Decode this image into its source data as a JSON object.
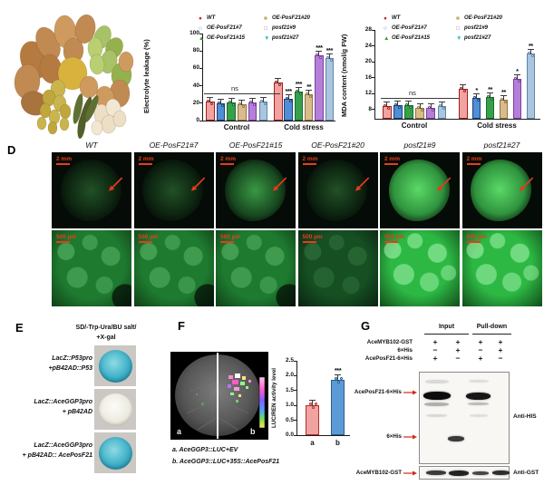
{
  "chart_data": [
    {
      "id": "electrolyte",
      "type": "bar",
      "title": "",
      "ylabel": "Electrolyte leakage (%)",
      "categories": [
        "Control",
        "Cold stress"
      ],
      "ylim": [
        0,
        100
      ],
      "yticks": [
        0,
        20,
        40,
        60,
        80,
        100
      ],
      "ns": {
        "label": "ns",
        "value": 31
      },
      "series": [
        {
          "name": "WT",
          "marker": "●",
          "color": "#c62828",
          "fill": "#f0a3a1",
          "border": "#a31d1d",
          "values": [
            22,
            44
          ],
          "sig": [
            "",
            ""
          ]
        },
        {
          "name": "OE-PosF21#7",
          "marker": "○",
          "color": "#2e5fa3",
          "fill": "#4e8fd6",
          "border": "#1c3f76",
          "values": [
            20,
            25
          ],
          "sig": [
            "",
            "***"
          ]
        },
        {
          "name": "OE-PosF21#15",
          "marker": "▲",
          "color": "#2f9e41",
          "fill": "#35a14b",
          "border": "#1c6b2c",
          "values": [
            21,
            33
          ],
          "sig": [
            "",
            "***"
          ]
        },
        {
          "name": "OE-PosF21#20",
          "marker": "■",
          "color": "#c8a96b",
          "fill": "#d9bc8d",
          "border": "#94743d",
          "values": [
            19,
            30
          ],
          "sig": [
            "",
            "**"
          ]
        },
        {
          "name": "posf21#9",
          "marker": "□",
          "color": "#b06fd4",
          "fill": "#b57fd9",
          "border": "#7d3f9e",
          "values": [
            21,
            75
          ],
          "sig": [
            "",
            "***"
          ]
        },
        {
          "name": "posf21#27",
          "marker": "▼",
          "color": "#45b8cc",
          "fill": "#a9c6de",
          "border": "#5f86a8",
          "values": [
            22,
            72
          ],
          "sig": [
            "",
            "***"
          ]
        }
      ]
    },
    {
      "id": "mda",
      "type": "bar",
      "title": "",
      "ylabel": "MDA content (nmol/g FW)",
      "categories": [
        "Control",
        "Cold stress"
      ],
      "ylim": [
        5.7,
        28
      ],
      "yticks": [
        8,
        12,
        16,
        20,
        24,
        28
      ],
      "ns": {
        "label": "ns",
        "value": 11
      },
      "series": [
        {
          "name": "WT",
          "marker": "●",
          "color": "#c62828",
          "fill": "#f0a3a1",
          "border": "#a31d1d",
          "values": [
            8.8,
            13.2
          ],
          "sig": [
            "",
            ""
          ]
        },
        {
          "name": "OE-PosF21#7",
          "marker": "○",
          "color": "#2e5fa3",
          "fill": "#4e8fd6",
          "border": "#1c3f76",
          "values": [
            9.2,
            11.0
          ],
          "sig": [
            "",
            "*"
          ]
        },
        {
          "name": "OE-PosF21#15",
          "marker": "▲",
          "color": "#2f9e41",
          "fill": "#35a14b",
          "border": "#1c6b2c",
          "values": [
            9.0,
            11.2
          ],
          "sig": [
            "",
            "**"
          ]
        },
        {
          "name": "OE-PosF21#20",
          "marker": "■",
          "color": "#c8a96b",
          "fill": "#d9bc8d",
          "border": "#94743d",
          "values": [
            8.5,
            10.4
          ],
          "sig": [
            "",
            "**"
          ]
        },
        {
          "name": "posf21#9",
          "marker": "□",
          "color": "#b06fd4",
          "fill": "#b57fd9",
          "border": "#7d3f9e",
          "values": [
            8.4,
            15.8
          ],
          "sig": [
            "",
            "*"
          ]
        },
        {
          "name": "posf21#27",
          "marker": "▼",
          "color": "#45b8cc",
          "fill": "#a9c6de",
          "border": "#5f86a8",
          "values": [
            8.9,
            22.0
          ],
          "sig": [
            "",
            "**"
          ]
        }
      ]
    },
    {
      "id": "lucren",
      "type": "bar",
      "title": "",
      "ylabel": "LUC/REN activity level",
      "categories": [
        "a",
        "b"
      ],
      "ylim": [
        0,
        2.5
      ],
      "yticks": [
        0.0,
        0.5,
        1.0,
        1.5,
        2.0,
        2.5
      ],
      "bars": [
        {
          "label": "a",
          "value": 1.0,
          "fill": "#f0a3a1",
          "border": "#b03028",
          "sig": ""
        },
        {
          "label": "b",
          "value": 1.87,
          "fill": "#5b9bd5",
          "border": "#2a5d8a",
          "sig": "***"
        }
      ]
    }
  ],
  "panelD": {
    "label": "D",
    "scale_row1": "2 mm",
    "scale_row2": "500 µm",
    "columns": [
      {
        "label": "WT",
        "b1": "dim",
        "b2": "med"
      },
      {
        "label": "OE-PosF21#7",
        "b1": "dim",
        "b2": "med"
      },
      {
        "label": "OE-PosF21#15",
        "b1": "med",
        "b2": "med"
      },
      {
        "label": "OE-PosF21#20",
        "b1": "dim",
        "b2": "dim"
      },
      {
        "label": "posf21#9",
        "b1": "bright",
        "b2": "bright"
      },
      {
        "label": "posf21#27",
        "b1": "bright",
        "b2": "bright"
      }
    ]
  },
  "panelE": {
    "label": "E",
    "header_line1": "SD/-Trp-Ura/BU salt/",
    "header_line2": "+X-gal",
    "rows": [
      {
        "line1": "LacZ::P53pro",
        "line2": "+pB42AD::P53",
        "colony": "blue"
      },
      {
        "line1": "LacZ::AceGGP3pro",
        "line2": "+ pB42AD",
        "colony": "white"
      },
      {
        "line1": "LacZ::AceGGP3pro",
        "line2": "+ pB42AD:: AcePosF21",
        "colony": "blue"
      }
    ]
  },
  "panelF": {
    "label": "F",
    "leaf_label_a": "a",
    "leaf_label_b": "b",
    "caption_a": "a. AceGGP3::LUC+EV",
    "caption_b": "b. AceGGP3::LUC+35S::AcePosF21"
  },
  "panelG": {
    "label": "G",
    "groups": [
      "Input",
      "Pull-down"
    ],
    "matrix_rows": [
      {
        "label": "AceMYB102-GST",
        "values": [
          "+",
          "+",
          "+",
          "+"
        ]
      },
      {
        "label": "6×His",
        "values": [
          "−",
          "+",
          "−",
          "+"
        ]
      },
      {
        "label": "AcePosF21-6×His",
        "values": [
          "+",
          "−",
          "+",
          "−"
        ]
      }
    ],
    "band_label_1": "AcePosF21-6×His",
    "band_label_2": "6×His",
    "band_label_3": "AceMYB102-GST",
    "antibody_1": "Anti-HIS",
    "antibody_2": "Anti-GST"
  }
}
